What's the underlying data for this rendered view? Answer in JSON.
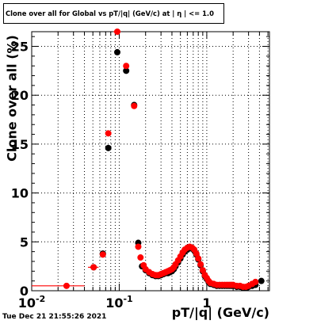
{
  "title": "Clone  over all for Global vs pT/|q| (GeV/c) at | η | <= 1.0",
  "timestamp": "Tue Dec 21 21:55:26 2021",
  "chart_data": {
    "type": "scatter",
    "title": "Clone  over all for Global vs pT/|q| (GeV/c) at | η | <= 1.0",
    "xlabel": "pT/|q| (GeV/c)",
    "ylabel": "Clone  over all (%)",
    "x_scale": "log",
    "xlim": [
      0.01,
      5.2
    ],
    "ylim": [
      0,
      26.5
    ],
    "y_ticks": [
      0,
      5,
      10,
      15,
      20,
      25
    ],
    "x_ticks": [
      0.01,
      0.1,
      1
    ],
    "x_tick_labels": [
      "10^-2",
      "10^-1",
      "1"
    ],
    "grid": true,
    "series": [
      {
        "color": "#000000",
        "points": [
          [
            0.051,
            2.4
          ],
          [
            0.065,
            3.8
          ],
          [
            0.075,
            14.6
          ],
          [
            0.095,
            24.4
          ],
          [
            0.12,
            22.5
          ],
          [
            0.148,
            19.0
          ],
          [
            0.165,
            4.9
          ],
          [
            0.182,
            2.5
          ],
          [
            0.2,
            2.1
          ],
          [
            0.22,
            1.8
          ],
          [
            0.24,
            1.6
          ],
          [
            0.26,
            1.5
          ],
          [
            0.28,
            1.5
          ],
          [
            0.3,
            1.6
          ],
          [
            0.32,
            1.7
          ],
          [
            0.34,
            1.8
          ],
          [
            0.36,
            1.8
          ],
          [
            0.38,
            1.9
          ],
          [
            0.4,
            2.0
          ],
          [
            0.42,
            2.2
          ],
          [
            0.44,
            2.5
          ],
          [
            0.47,
            2.9
          ],
          [
            0.5,
            3.3
          ],
          [
            0.53,
            3.7
          ],
          [
            0.56,
            4.0
          ],
          [
            0.6,
            4.2
          ],
          [
            0.64,
            4.4
          ],
          [
            0.68,
            4.3
          ],
          [
            0.72,
            4.1
          ],
          [
            0.76,
            3.7
          ],
          [
            0.8,
            3.2
          ],
          [
            0.85,
            2.6
          ],
          [
            0.9,
            2.0
          ],
          [
            0.95,
            1.5
          ],
          [
            1.0,
            1.2
          ],
          [
            1.05,
            0.9
          ],
          [
            1.1,
            0.7
          ],
          [
            1.2,
            0.6
          ],
          [
            1.3,
            0.5
          ],
          [
            1.4,
            0.5
          ],
          [
            1.5,
            0.5
          ],
          [
            1.6,
            0.5
          ],
          [
            1.7,
            0.5
          ],
          [
            1.8,
            0.5
          ],
          [
            1.9,
            0.5
          ],
          [
            2.0,
            0.5
          ],
          [
            2.2,
            0.4
          ],
          [
            2.4,
            0.4
          ],
          [
            2.6,
            0.3
          ],
          [
            2.8,
            0.3
          ],
          [
            3.0,
            0.4
          ],
          [
            3.3,
            0.5
          ],
          [
            3.6,
            0.6
          ],
          [
            4.2,
            1.0
          ]
        ]
      },
      {
        "color": "#ff0000",
        "points": [
          [
            0.025,
            0.5
          ],
          [
            0.051,
            2.4
          ],
          [
            0.065,
            3.7
          ],
          [
            0.075,
            16.1
          ],
          [
            0.095,
            26.5
          ],
          [
            0.12,
            23.0
          ],
          [
            0.148,
            18.9
          ],
          [
            0.165,
            4.5
          ],
          [
            0.175,
            3.4
          ],
          [
            0.19,
            2.6
          ],
          [
            0.2,
            2.2
          ],
          [
            0.22,
            1.9
          ],
          [
            0.24,
            1.7
          ],
          [
            0.26,
            1.6
          ],
          [
            0.28,
            1.6
          ],
          [
            0.3,
            1.7
          ],
          [
            0.32,
            1.8
          ],
          [
            0.34,
            1.9
          ],
          [
            0.36,
            2.0
          ],
          [
            0.38,
            2.1
          ],
          [
            0.4,
            2.2
          ],
          [
            0.42,
            2.4
          ],
          [
            0.44,
            2.7
          ],
          [
            0.47,
            3.1
          ],
          [
            0.5,
            3.5
          ],
          [
            0.53,
            3.9
          ],
          [
            0.56,
            4.2
          ],
          [
            0.6,
            4.4
          ],
          [
            0.64,
            4.5
          ],
          [
            0.68,
            4.4
          ],
          [
            0.72,
            4.2
          ],
          [
            0.76,
            3.8
          ],
          [
            0.8,
            3.3
          ],
          [
            0.85,
            2.7
          ],
          [
            0.9,
            2.1
          ],
          [
            0.95,
            1.6
          ],
          [
            1.0,
            1.3
          ],
          [
            1.05,
            1.0
          ],
          [
            1.1,
            0.8
          ],
          [
            1.2,
            0.7
          ],
          [
            1.3,
            0.6
          ],
          [
            1.4,
            0.6
          ],
          [
            1.5,
            0.6
          ],
          [
            1.6,
            0.6
          ],
          [
            1.7,
            0.6
          ],
          [
            1.8,
            0.6
          ],
          [
            1.9,
            0.6
          ],
          [
            2.0,
            0.6
          ],
          [
            2.2,
            0.5
          ],
          [
            2.4,
            0.5
          ],
          [
            2.6,
            0.4
          ],
          [
            2.8,
            0.4
          ],
          [
            3.0,
            0.5
          ],
          [
            3.3,
            0.7
          ],
          [
            3.6,
            0.9
          ]
        ],
        "x_error_bars": [
          [
            0.025,
            0.5,
            0.01,
            0.04
          ],
          [
            0.051,
            2.4,
            0.044,
            0.058
          ],
          [
            0.095,
            26.5,
            0.086,
            0.104
          ]
        ]
      }
    ]
  }
}
